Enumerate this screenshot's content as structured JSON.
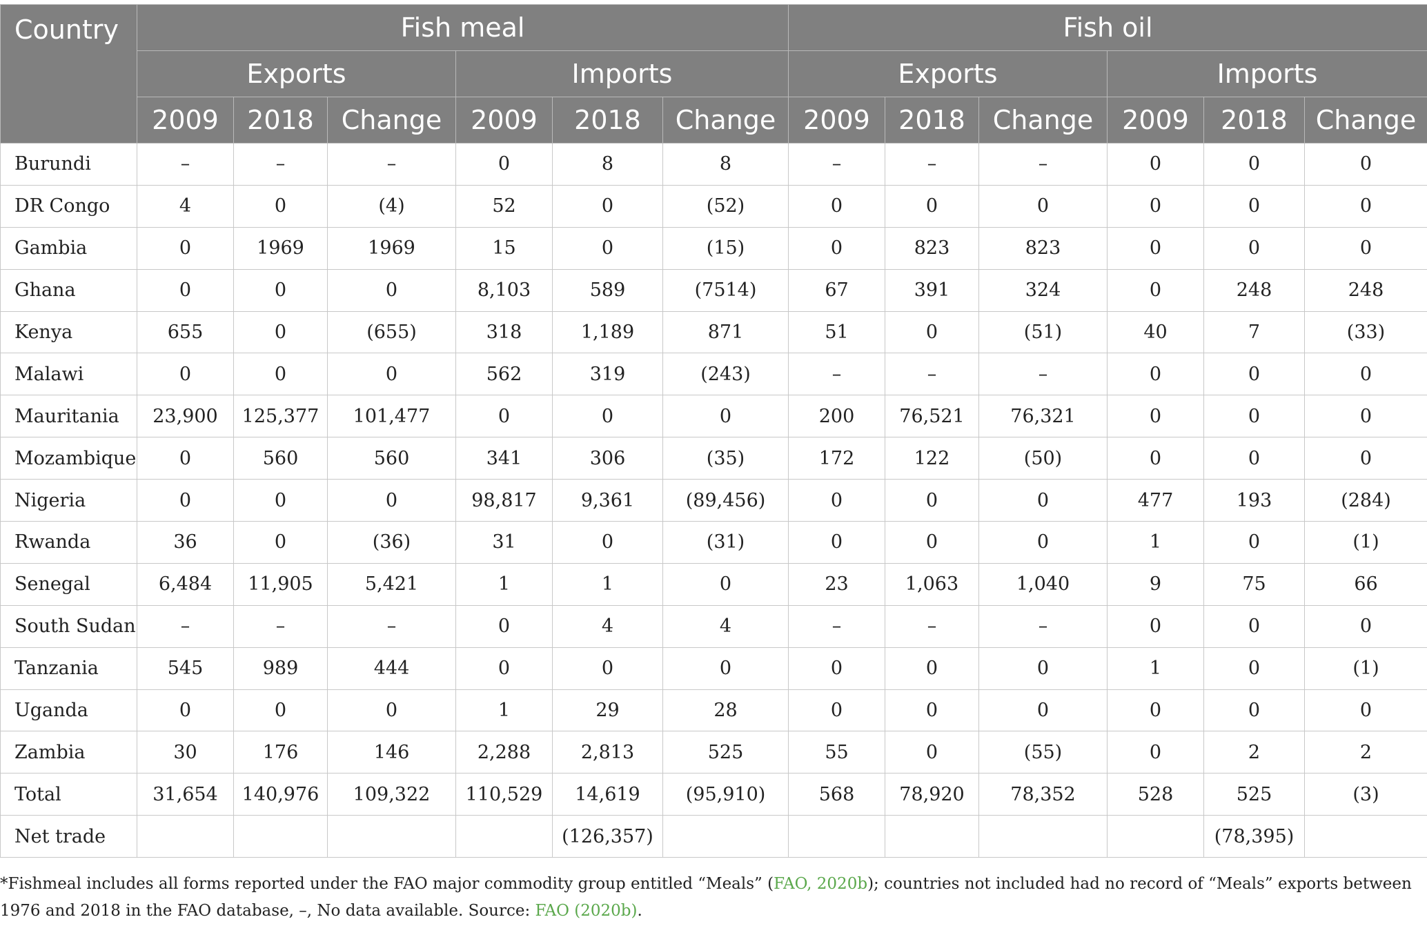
{
  "table": {
    "header": {
      "country": "Country",
      "groups": [
        "Fish meal",
        "Fish oil"
      ],
      "subgroups": [
        "Exports",
        "Imports",
        "Exports",
        "Imports"
      ],
      "columns": [
        "2009",
        "2018",
        "Change",
        "2009",
        "2018",
        "Change",
        "2009",
        "2018",
        "Change",
        "2009",
        "2018",
        "Change"
      ]
    },
    "rows": [
      {
        "country": "Burundi",
        "values": [
          "–",
          "–",
          "–",
          "0",
          "8",
          "8",
          "–",
          "–",
          "–",
          "0",
          "0",
          "0"
        ]
      },
      {
        "country": "DR Congo",
        "values": [
          "4",
          "0",
          "(4)",
          "52",
          "0",
          "(52)",
          "0",
          "0",
          "0",
          "0",
          "0",
          "0"
        ]
      },
      {
        "country": "Gambia",
        "values": [
          "0",
          "1969",
          "1969",
          "15",
          "0",
          "(15)",
          "0",
          "823",
          "823",
          "0",
          "0",
          "0"
        ]
      },
      {
        "country": "Ghana",
        "values": [
          "0",
          "0",
          "0",
          "8,103",
          "589",
          "(7514)",
          "67",
          "391",
          "324",
          "0",
          "248",
          "248"
        ]
      },
      {
        "country": "Kenya",
        "values": [
          "655",
          "0",
          "(655)",
          "318",
          "1,189",
          "871",
          "51",
          "0",
          "(51)",
          "40",
          "7",
          "(33)"
        ]
      },
      {
        "country": "Malawi",
        "values": [
          "0",
          "0",
          "0",
          "562",
          "319",
          "(243)",
          "–",
          "–",
          "–",
          "0",
          "0",
          "0"
        ]
      },
      {
        "country": "Mauritania",
        "values": [
          "23,900",
          "125,377",
          "101,477",
          "0",
          "0",
          "0",
          "200",
          "76,521",
          "76,321",
          "0",
          "0",
          "0"
        ]
      },
      {
        "country": "Mozambique",
        "values": [
          "0",
          "560",
          "560",
          "341",
          "306",
          "(35)",
          "172",
          "122",
          "(50)",
          "0",
          "0",
          "0"
        ]
      },
      {
        "country": "Nigeria",
        "values": [
          "0",
          "0",
          "0",
          "98,817",
          "9,361",
          "(89,456)",
          "0",
          "0",
          "0",
          "477",
          "193",
          "(284)"
        ]
      },
      {
        "country": "Rwanda",
        "values": [
          "36",
          "0",
          "(36)",
          "31",
          "0",
          "(31)",
          "0",
          "0",
          "0",
          "1",
          "0",
          "(1)"
        ]
      },
      {
        "country": "Senegal",
        "values": [
          "6,484",
          "11,905",
          "5,421",
          "1",
          "1",
          "0",
          "23",
          "1,063",
          "1,040",
          "9",
          "75",
          "66"
        ]
      },
      {
        "country": "South Sudan",
        "values": [
          "–",
          "–",
          "–",
          "0",
          "4",
          "4",
          "–",
          "–",
          "–",
          "0",
          "0",
          "0"
        ]
      },
      {
        "country": "Tanzania",
        "values": [
          "545",
          "989",
          "444",
          "0",
          "0",
          "0",
          "0",
          "0",
          "0",
          "1",
          "0",
          "(1)"
        ]
      },
      {
        "country": "Uganda",
        "values": [
          "0",
          "0",
          "0",
          "1",
          "29",
          "28",
          "0",
          "0",
          "0",
          "0",
          "0",
          "0"
        ]
      },
      {
        "country": "Zambia",
        "values": [
          "30",
          "176",
          "146",
          "2,288",
          "2,813",
          "525",
          "55",
          "0",
          "(55)",
          "0",
          "2",
          "2"
        ]
      },
      {
        "country": "Total",
        "values": [
          "31,654",
          "140,976",
          "109,322",
          "110,529",
          "14,619",
          "(95,910)",
          "568",
          "78,920",
          "78,352",
          "528",
          "525",
          "(3)"
        ]
      },
      {
        "country": "Net trade",
        "values": [
          "",
          "",
          "",
          "",
          "(126,357)",
          "",
          "",
          "",
          "",
          "",
          "(78,395)",
          ""
        ]
      }
    ]
  },
  "footnote": {
    "part1": "*Fishmeal includes all forms reported under the FAO major commodity group entitled “Meals” (",
    "link1": "FAO, 2020b",
    "part2": "); countries not included had no record of “Meals” exports between 1976 and 2018 in the FAO database, –, No data available. Source: ",
    "link2": "FAO (2020b)",
    "part3": "."
  }
}
